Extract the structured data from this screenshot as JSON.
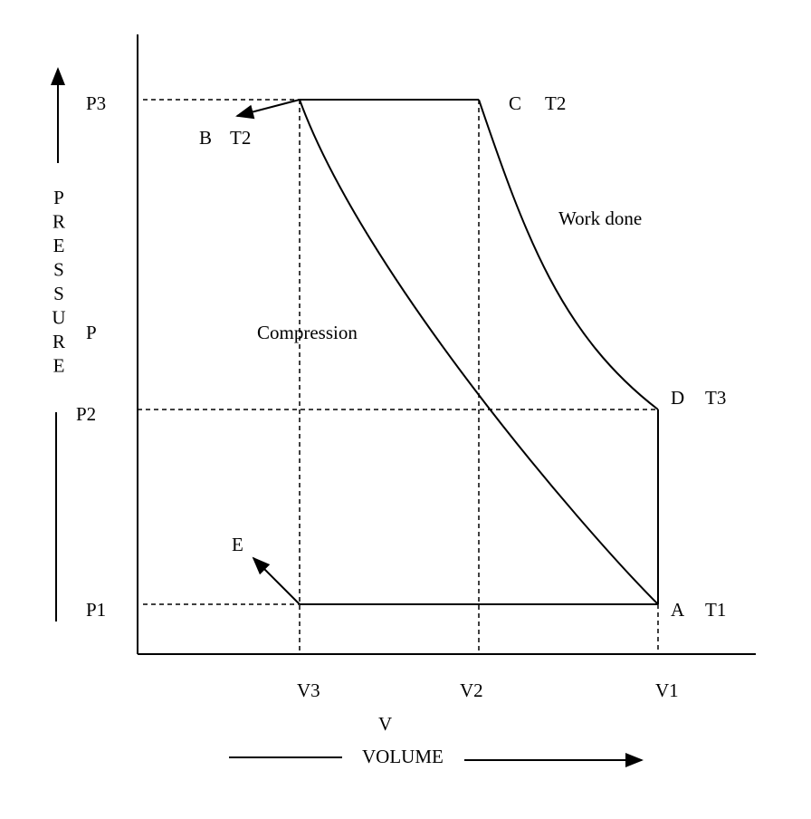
{
  "y_axis": {
    "ticks": [
      "P3",
      "P2",
      "P1"
    ],
    "symbol": "P",
    "letters": [
      "P",
      "R",
      "E",
      "S",
      "S",
      "U",
      "R",
      "E"
    ]
  },
  "x_axis": {
    "ticks": [
      "V3",
      "V2",
      "V1"
    ],
    "symbol": "V",
    "label": "VOLUME"
  },
  "points": {
    "B": {
      "name": "B",
      "temp": "T2"
    },
    "C": {
      "name": "C",
      "temp": "T2"
    },
    "D": {
      "name": "D",
      "temp": "T3"
    },
    "A": {
      "name": "A",
      "temp": "T1"
    },
    "E": {
      "name": "E"
    }
  },
  "annotations": {
    "work": "Work done",
    "compression": "Compression"
  }
}
